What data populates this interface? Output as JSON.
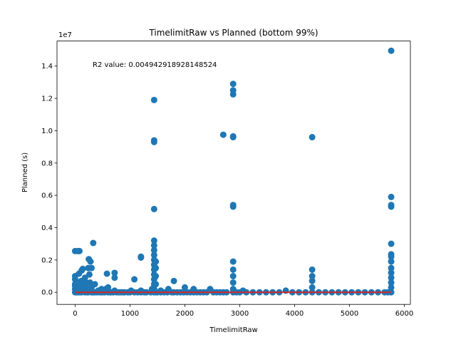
{
  "chart_data": {
    "type": "scatter",
    "title": "TimelimitRaw vs Planned (bottom 99%)",
    "xlabel": "TimelimitRaw",
    "ylabel": "Planned (s)",
    "y_offset_label": "1e7",
    "annotation": "R2 value: 0.004942918928148524",
    "xlim": [
      -330,
      6110
    ],
    "ylim": [
      -0.075,
      1.555
    ],
    "y_scale": "1e7",
    "grid": false,
    "x_ticks": [
      0,
      1000,
      2000,
      3000,
      4000,
      5000,
      6000
    ],
    "x_tick_labels": [
      "0",
      "1000",
      "2000",
      "3000",
      "4000",
      "5000",
      "6000"
    ],
    "y_ticks": [
      0.0,
      0.2,
      0.4,
      0.6,
      0.8,
      1.0,
      1.2,
      1.4
    ],
    "y_tick_labels": [
      "0.0",
      "0.2",
      "0.4",
      "0.6",
      "0.8",
      "1.0",
      "1.2",
      "1.4"
    ],
    "point_color": "#1f77b4",
    "line_color": "#d62728",
    "fit_line": {
      "x": [
        0,
        5760
      ],
      "y": [
        0.0,
        0.0
      ]
    },
    "series": [
      {
        "points": [
          [
            0,
            0.0
          ],
          [
            0,
            0.02
          ],
          [
            0,
            0.05
          ],
          [
            0,
            0.08
          ],
          [
            0,
            0.1
          ],
          [
            0,
            0.04
          ],
          [
            0,
            0.255
          ],
          [
            10,
            0.0
          ],
          [
            20,
            0.03
          ],
          [
            30,
            0.06
          ],
          [
            40,
            0.0
          ],
          [
            50,
            0.255
          ],
          [
            60,
            0.0
          ],
          [
            60,
            0.02
          ],
          [
            70,
            0.115
          ],
          [
            80,
            0.255
          ],
          [
            90,
            0.0
          ],
          [
            100,
            0.04
          ],
          [
            110,
            0.07
          ],
          [
            120,
            0.0
          ],
          [
            120,
            0.135
          ],
          [
            130,
            0.01
          ],
          [
            140,
            0.145
          ],
          [
            150,
            0.05
          ],
          [
            160,
            0.02
          ],
          [
            180,
            0.0
          ],
          [
            180,
            0.09
          ],
          [
            200,
            0.03
          ],
          [
            200,
            0.06
          ],
          [
            220,
            0.0
          ],
          [
            240,
            0.0
          ],
          [
            240,
            0.15
          ],
          [
            250,
            0.205
          ],
          [
            260,
            0.11
          ],
          [
            270,
            0.06
          ],
          [
            280,
            0.19
          ],
          [
            300,
            0.15
          ],
          [
            300,
            0.0
          ],
          [
            300,
            0.03
          ],
          [
            320,
            0.0
          ],
          [
            330,
            0.305
          ],
          [
            340,
            0.0
          ],
          [
            360,
            0.0
          ],
          [
            360,
            0.05
          ],
          [
            400,
            0.0
          ],
          [
            420,
            0.01
          ],
          [
            450,
            0.0
          ],
          [
            480,
            0.0
          ],
          [
            480,
            0.02
          ],
          [
            500,
            0.0
          ],
          [
            540,
            0.0
          ],
          [
            560,
            0.02
          ],
          [
            580,
            0.115
          ],
          [
            600,
            0.0
          ],
          [
            600,
            0.03
          ],
          [
            640,
            0.0
          ],
          [
            660,
            0.0
          ],
          [
            700,
            0.0
          ],
          [
            720,
            0.01
          ],
          [
            720,
            0.09
          ],
          [
            720,
            0.12
          ],
          [
            760,
            0.0
          ],
          [
            800,
            0.0
          ],
          [
            840,
            0.0
          ],
          [
            880,
            0.0
          ],
          [
            900,
            0.0
          ],
          [
            960,
            0.0
          ],
          [
            1000,
            0.0
          ],
          [
            1020,
            0.01
          ],
          [
            1080,
            0.0
          ],
          [
            1080,
            0.08
          ],
          [
            1140,
            0.0
          ],
          [
            1200,
            0.0
          ],
          [
            1200,
            0.01
          ],
          [
            1200,
            0.215
          ],
          [
            1200,
            0.22
          ],
          [
            1260,
            0.0
          ],
          [
            1300,
            0.0
          ],
          [
            1380,
            0.0
          ],
          [
            1400,
            0.02
          ],
          [
            1440,
            0.0
          ],
          [
            1440,
            0.02
          ],
          [
            1440,
            0.05
          ],
          [
            1440,
            0.08
          ],
          [
            1440,
            0.11
          ],
          [
            1440,
            0.14
          ],
          [
            1440,
            0.17
          ],
          [
            1440,
            0.2
          ],
          [
            1440,
            0.23
          ],
          [
            1440,
            0.26
          ],
          [
            1440,
            0.29
          ],
          [
            1440,
            0.32
          ],
          [
            1440,
            0.515
          ],
          [
            1440,
            0.93
          ],
          [
            1440,
            0.94
          ],
          [
            1440,
            1.19
          ],
          [
            1470,
            0.0
          ],
          [
            1470,
            0.05
          ],
          [
            1470,
            0.1
          ],
          [
            1470,
            0.15
          ],
          [
            1470,
            0.19
          ],
          [
            1500,
            0.0
          ],
          [
            1560,
            0.0
          ],
          [
            1560,
            0.01
          ],
          [
            1620,
            0.0
          ],
          [
            1680,
            0.0
          ],
          [
            1700,
            0.02
          ],
          [
            1760,
            0.0
          ],
          [
            1800,
            0.0
          ],
          [
            1800,
            0.07
          ],
          [
            1860,
            0.0
          ],
          [
            1920,
            0.0
          ],
          [
            1980,
            0.0
          ],
          [
            2000,
            0.03
          ],
          [
            2040,
            0.0
          ],
          [
            2100,
            0.0
          ],
          [
            2160,
            0.0
          ],
          [
            2160,
            0.02
          ],
          [
            2220,
            0.0
          ],
          [
            2280,
            0.0
          ],
          [
            2340,
            0.0
          ],
          [
            2400,
            0.0
          ],
          [
            2460,
            0.02
          ],
          [
            2520,
            0.0
          ],
          [
            2580,
            0.0
          ],
          [
            2640,
            0.0
          ],
          [
            2700,
            0.0
          ],
          [
            2700,
            0.975
          ],
          [
            2760,
            0.0
          ],
          [
            2880,
            0.0
          ],
          [
            2880,
            0.02
          ],
          [
            2880,
            0.06
          ],
          [
            2880,
            0.1
          ],
          [
            2880,
            0.14
          ],
          [
            2880,
            0.19
          ],
          [
            2880,
            0.53
          ],
          [
            2880,
            0.54
          ],
          [
            2880,
            0.96
          ],
          [
            2880,
            0.965
          ],
          [
            2880,
            1.225
          ],
          [
            2880,
            1.25
          ],
          [
            2880,
            1.29
          ],
          [
            2940,
            0.0
          ],
          [
            3000,
            0.0
          ],
          [
            3060,
            0.01
          ],
          [
            3120,
            0.0
          ],
          [
            3240,
            0.0
          ],
          [
            3360,
            0.0
          ],
          [
            3480,
            0.0
          ],
          [
            3600,
            0.0
          ],
          [
            3720,
            0.0
          ],
          [
            3840,
            0.01
          ],
          [
            3960,
            0.0
          ],
          [
            4080,
            0.0
          ],
          [
            4200,
            0.0
          ],
          [
            4320,
            0.0
          ],
          [
            4320,
            0.03
          ],
          [
            4320,
            0.07
          ],
          [
            4320,
            0.1
          ],
          [
            4320,
            0.14
          ],
          [
            4320,
            0.96
          ],
          [
            4440,
            0.0
          ],
          [
            4560,
            0.0
          ],
          [
            4680,
            0.0
          ],
          [
            4800,
            0.0
          ],
          [
            4920,
            0.0
          ],
          [
            5040,
            0.0
          ],
          [
            5160,
            0.0
          ],
          [
            5280,
            0.0
          ],
          [
            5400,
            0.0
          ],
          [
            5520,
            0.0
          ],
          [
            5640,
            0.0
          ],
          [
            5700,
            0.0
          ],
          [
            5760,
            0.0
          ],
          [
            5760,
            0.03
          ],
          [
            5760,
            0.06
          ],
          [
            5760,
            0.09
          ],
          [
            5760,
            0.12
          ],
          [
            5760,
            0.15
          ],
          [
            5760,
            0.19
          ],
          [
            5760,
            0.22
          ],
          [
            5760,
            0.235
          ],
          [
            5760,
            0.3
          ],
          [
            5760,
            0.53
          ],
          [
            5760,
            0.54
          ],
          [
            5760,
            0.59
          ],
          [
            5760,
            1.495
          ]
        ]
      }
    ]
  }
}
